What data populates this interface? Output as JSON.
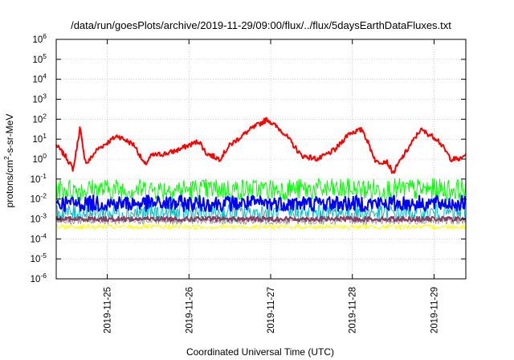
{
  "chart_data": {
    "type": "line",
    "title": "/data/run/goesPlots/archive/2019-11-29/09:00/flux/../flux/5daysEarthDataFluxes.txt",
    "xlabel": "Coordinated Universal Time (UTC)",
    "ylabel": "protons/cm²-s-sr-MeV",
    "ylabel_parts": [
      "protons/cm",
      "2",
      "-s-sr-MeV"
    ],
    "y_scale": "log",
    "ylim": [
      1e-06,
      1000000.0
    ],
    "y_ticks": [
      {
        "base": "10",
        "exp": "-6",
        "value": 1e-06
      },
      {
        "base": "10",
        "exp": "-5",
        "value": 1e-05
      },
      {
        "base": "10",
        "exp": "-4",
        "value": 0.0001
      },
      {
        "base": "10",
        "exp": "-3",
        "value": 0.001
      },
      {
        "base": "10",
        "exp": "-2",
        "value": 0.01
      },
      {
        "base": "10",
        "exp": "-1",
        "value": 0.1
      },
      {
        "base": "10",
        "exp": "0",
        "value": 1
      },
      {
        "base": "10",
        "exp": "1",
        "value": 10
      },
      {
        "base": "10",
        "exp": "2",
        "value": 100
      },
      {
        "base": "10",
        "exp": "3",
        "value": 1000
      },
      {
        "base": "10",
        "exp": "4",
        "value": 10000
      },
      {
        "base": "10",
        "exp": "5",
        "value": 100000
      },
      {
        "base": "10",
        "exp": "6",
        "value": 1000000
      }
    ],
    "xlim": [
      "2019-11-24T09:00",
      "2019-11-29T09:20"
    ],
    "x_ticks": [
      "2019-11-25",
      "2019-11-26",
      "2019-11-27",
      "2019-11-28",
      "2019-11-29"
    ],
    "grid": true,
    "series": [
      {
        "color": "#ff0000",
        "width": 2,
        "x": [
          "2019-11-24T09:00",
          "2019-11-24T12:00",
          "2019-11-24T14:00",
          "2019-11-24T16:00",
          "2019-11-24T17:00",
          "2019-11-24T18:00",
          "2019-11-24T21:00",
          "2019-11-25T03:00",
          "2019-11-25T08:00",
          "2019-11-25T11:00",
          "2019-11-25T13:00",
          "2019-11-25T18:00",
          "2019-11-25T21:00",
          "2019-11-26T00:00",
          "2019-11-26T03:00",
          "2019-11-26T05:00",
          "2019-11-26T09:00",
          "2019-11-26T12:00",
          "2019-11-26T18:00",
          "2019-11-26T23:00",
          "2019-11-27T04:00",
          "2019-11-27T09:00",
          "2019-11-27T14:00",
          "2019-11-27T19:00",
          "2019-11-27T23:00",
          "2019-11-28T03:00",
          "2019-11-28T07:00",
          "2019-11-28T10:00",
          "2019-11-28T12:00",
          "2019-11-28T14:00",
          "2019-11-28T20:00",
          "2019-11-29T01:00",
          "2019-11-29T05:00",
          "2019-11-29T08:00",
          "2019-11-29T09:20"
        ],
        "y": [
          5,
          1.2,
          0.3,
          40,
          2,
          0.6,
          3,
          15,
          5,
          0.5,
          1.5,
          2,
          3,
          5,
          8,
          2,
          1,
          5,
          30,
          100,
          20,
          1.5,
          1,
          3,
          20,
          30,
          0.7,
          0.8,
          0.2,
          0.8,
          30,
          10,
          1,
          1,
          2
        ],
        "noise": 0.13
      },
      {
        "color": "#00ff00",
        "width": 1,
        "base": 0.03,
        "noise": 0.55
      },
      {
        "color": "#00c0c0",
        "width": 1,
        "base": 0.002,
        "noise": 0.45
      },
      {
        "color": "#0000ff",
        "width": 2,
        "base": 0.006,
        "noise": 0.4
      },
      {
        "color": "#ffff00",
        "width": 1,
        "base": 0.0004,
        "noise": 0.12
      },
      {
        "color": "#a0a0a0",
        "width": 1,
        "base": 0.0008,
        "noise": 0.18
      },
      {
        "color": "#8b3a62",
        "width": 2,
        "base": 0.001,
        "noise": 0.12
      }
    ]
  }
}
